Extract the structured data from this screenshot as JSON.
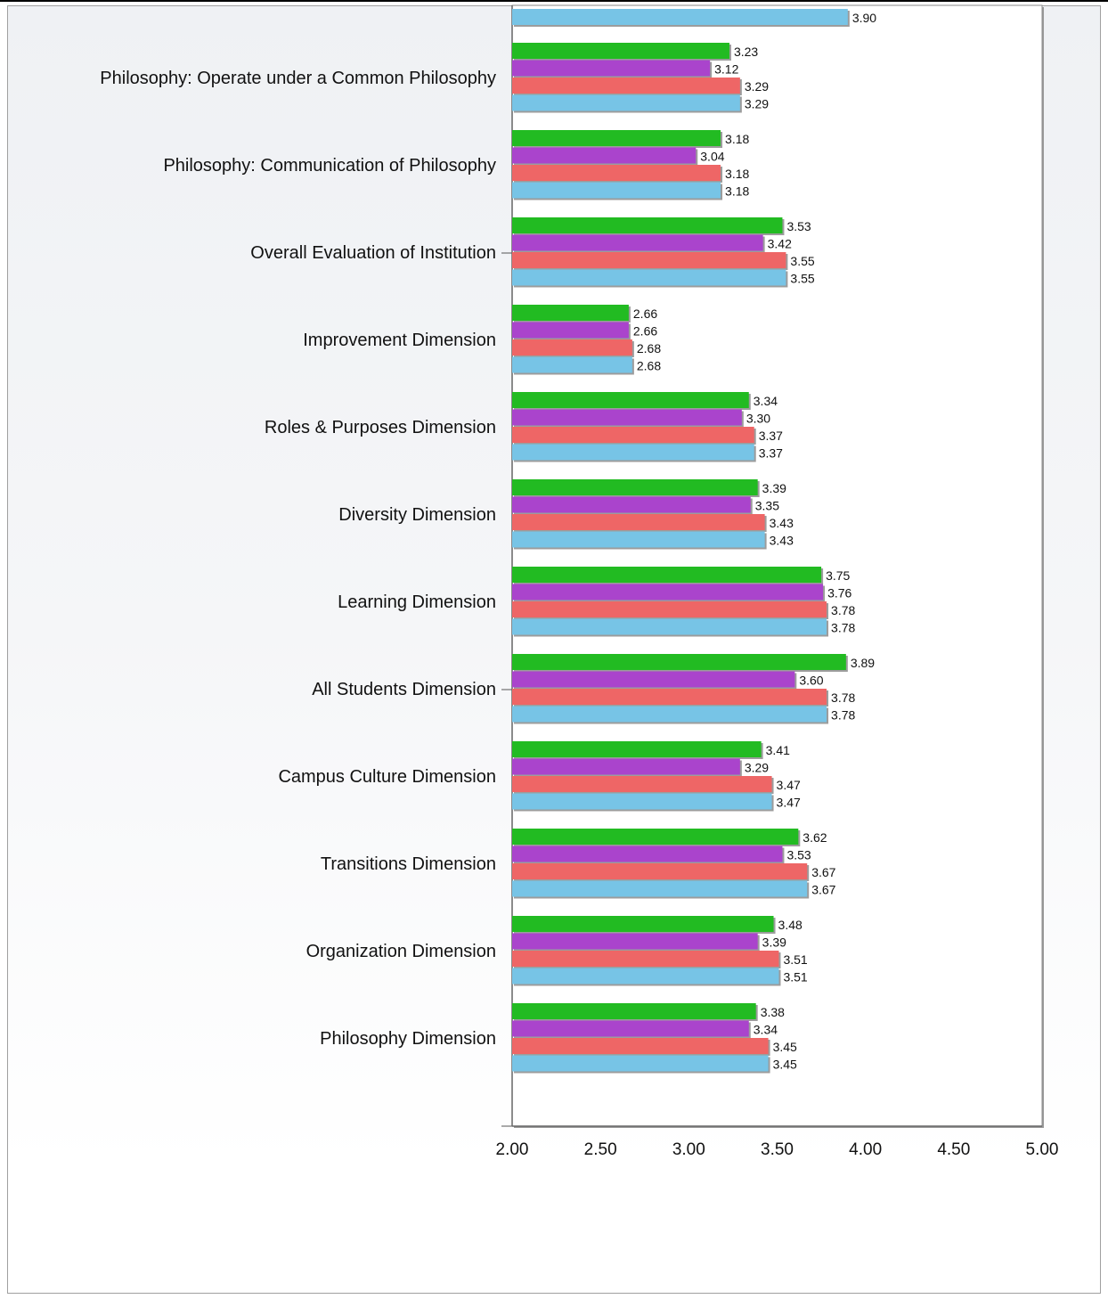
{
  "chart_data": {
    "type": "bar",
    "orientation": "horizontal",
    "xlim": [
      2.0,
      5.0
    ],
    "x_ticks": [
      "2.00",
      "2.50",
      "3.00",
      "3.50",
      "4.00",
      "4.50",
      "5.00"
    ],
    "grid": true,
    "colors": [
      "#22bb22",
      "#aa44cc",
      "#ee6666",
      "#77c4e6"
    ],
    "partial_top_bar": {
      "series_index": 3,
      "value": 3.9,
      "label": "3.90"
    },
    "categories": [
      "Philosophy: Operate under a Common Philosophy",
      "Philosophy: Communication of Philosophy",
      "Overall Evaluation of Institution",
      "Improvement Dimension",
      "Roles & Purposes Dimension",
      "Diversity Dimension",
      "Learning Dimension",
      "All Students Dimension",
      "Campus Culture Dimension",
      "Transitions Dimension",
      "Organization Dimension",
      "Philosophy Dimension"
    ],
    "series": [
      {
        "values": [
          3.23,
          3.18,
          3.53,
          2.66,
          3.34,
          3.39,
          3.75,
          3.89,
          3.41,
          3.62,
          3.48,
          3.38
        ],
        "labels": [
          "3.23",
          "3.18",
          "3.53",
          "2.66",
          "3.34",
          "3.39",
          "3.75",
          "3.89",
          "3.41",
          "3.62",
          "3.48",
          "3.38"
        ]
      },
      {
        "values": [
          3.12,
          3.04,
          3.42,
          2.66,
          3.3,
          3.35,
          3.76,
          3.6,
          3.29,
          3.53,
          3.39,
          3.34
        ],
        "labels": [
          "3.12",
          "3.04",
          "3.42",
          "2.66",
          "3.30",
          "3.35",
          "3.76",
          "3.60",
          "3.29",
          "3.53",
          "3.39",
          "3.34"
        ]
      },
      {
        "values": [
          3.29,
          3.18,
          3.55,
          2.68,
          3.37,
          3.43,
          3.78,
          3.78,
          3.47,
          3.67,
          3.51,
          3.45
        ],
        "labels": [
          "3.29",
          "3.18",
          "3.55",
          "2.68",
          "3.37",
          "3.43",
          "3.78",
          "3.78",
          "3.47",
          "3.67",
          "3.51",
          "3.45"
        ]
      },
      {
        "values": [
          3.29,
          3.18,
          3.55,
          2.68,
          3.37,
          3.43,
          3.78,
          3.78,
          3.47,
          3.67,
          3.51,
          3.45
        ],
        "labels": [
          "3.29",
          "3.18",
          "3.55",
          "2.68",
          "3.37",
          "3.43",
          "3.78",
          "3.78",
          "3.47",
          "3.67",
          "3.51",
          "3.45"
        ]
      }
    ]
  }
}
